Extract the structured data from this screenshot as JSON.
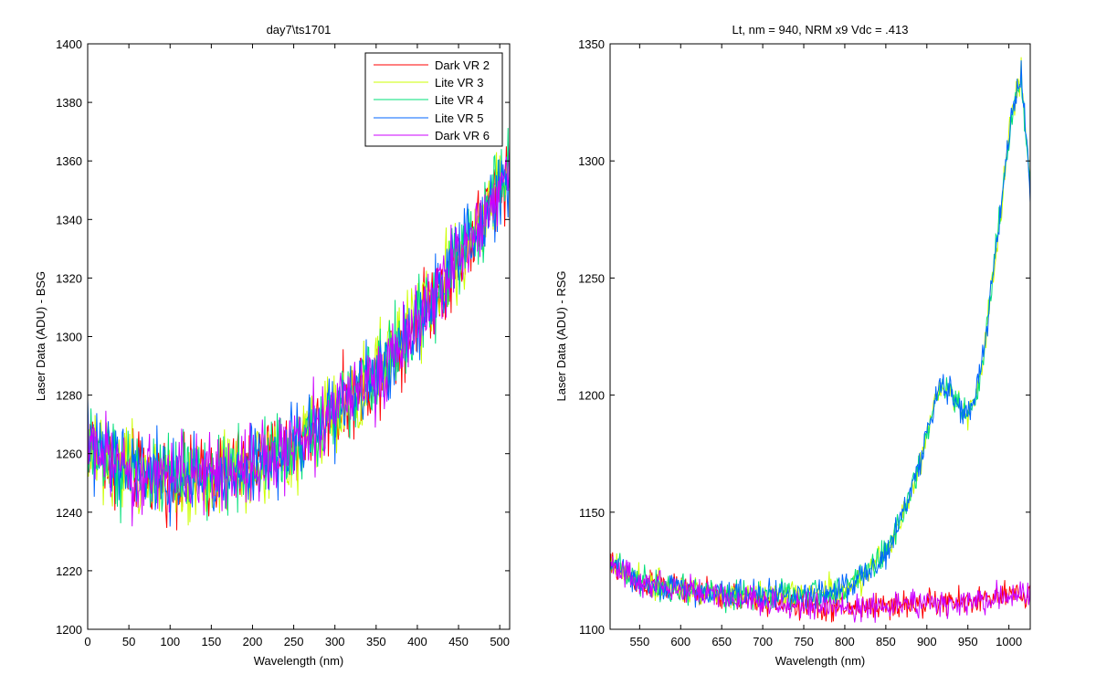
{
  "chart_data": [
    {
      "type": "line",
      "title": "day7\\ts1701",
      "xlabel": "Wavelength (nm)",
      "ylabel": "Laser Data (ADU) - BSG",
      "xlim": [
        0,
        512
      ],
      "ylim": [
        1200,
        1400
      ],
      "xticks": [
        "0",
        "50",
        "100",
        "150",
        "200",
        "250",
        "300",
        "350",
        "400",
        "450",
        "500"
      ],
      "yticks": [
        "1200",
        "1220",
        "1240",
        "1260",
        "1280",
        "1300",
        "1320",
        "1340",
        "1360",
        "1380",
        "1400"
      ],
      "legend_position": "top-right",
      "series": [
        {
          "name": "Dark VR 2",
          "color": "#ff0000"
        },
        {
          "name": "Lite VR 3",
          "color": "#ccff00"
        },
        {
          "name": "Lite VR 4",
          "color": "#00e07a"
        },
        {
          "name": "Lite VR 5",
          "color": "#0066ff"
        },
        {
          "name": "Dark VR 6",
          "color": "#cc00ff"
        }
      ],
      "trend": {
        "x": [
          0,
          25,
          50,
          75,
          100,
          125,
          150,
          175,
          200,
          225,
          250,
          275,
          300,
          325,
          350,
          375,
          400,
          425,
          450,
          475,
          500,
          512
        ],
        "y": [
          1265,
          1257,
          1254,
          1253,
          1252,
          1251,
          1252,
          1254,
          1256,
          1259,
          1263,
          1268,
          1274,
          1280,
          1287,
          1296,
          1306,
          1316,
          1327,
          1338,
          1352,
          1358
        ]
      },
      "noise": 9
    },
    {
      "type": "line",
      "title": "Lt, nm = 940, NRM x9 Vdc = .413",
      "xlabel": "Wavelength (nm)",
      "ylabel": "Laser Data (ADU) - RSG",
      "xlim": [
        514,
        1026
      ],
      "ylim": [
        1100,
        1350
      ],
      "xticks": [
        "550",
        "600",
        "650",
        "700",
        "750",
        "800",
        "850",
        "900",
        "950",
        "1000"
      ],
      "yticks": [
        "1100",
        "1150",
        "1200",
        "1250",
        "1300",
        "1350"
      ],
      "series": [
        {
          "color": "#ff0000",
          "group": "dark"
        },
        {
          "color": "#ccff00",
          "group": "lite"
        },
        {
          "color": "#00e07a",
          "group": "lite"
        },
        {
          "color": "#0066ff",
          "group": "lite"
        },
        {
          "color": "#cc00ff",
          "group": "dark"
        }
      ],
      "trend_lite": {
        "x": [
          514,
          550,
          600,
          650,
          700,
          750,
          800,
          830,
          850,
          870,
          890,
          905,
          915,
          925,
          940,
          950,
          960,
          970,
          980,
          990,
          1000,
          1005,
          1010,
          1015,
          1020,
          1026
        ],
        "y": [
          1128,
          1120,
          1117,
          1115,
          1114,
          1115,
          1117,
          1125,
          1133,
          1148,
          1168,
          1190,
          1205,
          1202,
          1195,
          1190,
          1200,
          1220,
          1250,
          1280,
          1310,
          1325,
          1330,
          1338,
          1315,
          1290
        ]
      },
      "trend_dark": {
        "x": [
          514,
          550,
          600,
          650,
          700,
          750,
          800,
          850,
          900,
          950,
          1000,
          1026
        ],
        "y": [
          1128,
          1120,
          1117,
          1114,
          1112,
          1110,
          1109,
          1110,
          1111,
          1112,
          1114,
          1115
        ]
      },
      "noise": 4
    }
  ]
}
